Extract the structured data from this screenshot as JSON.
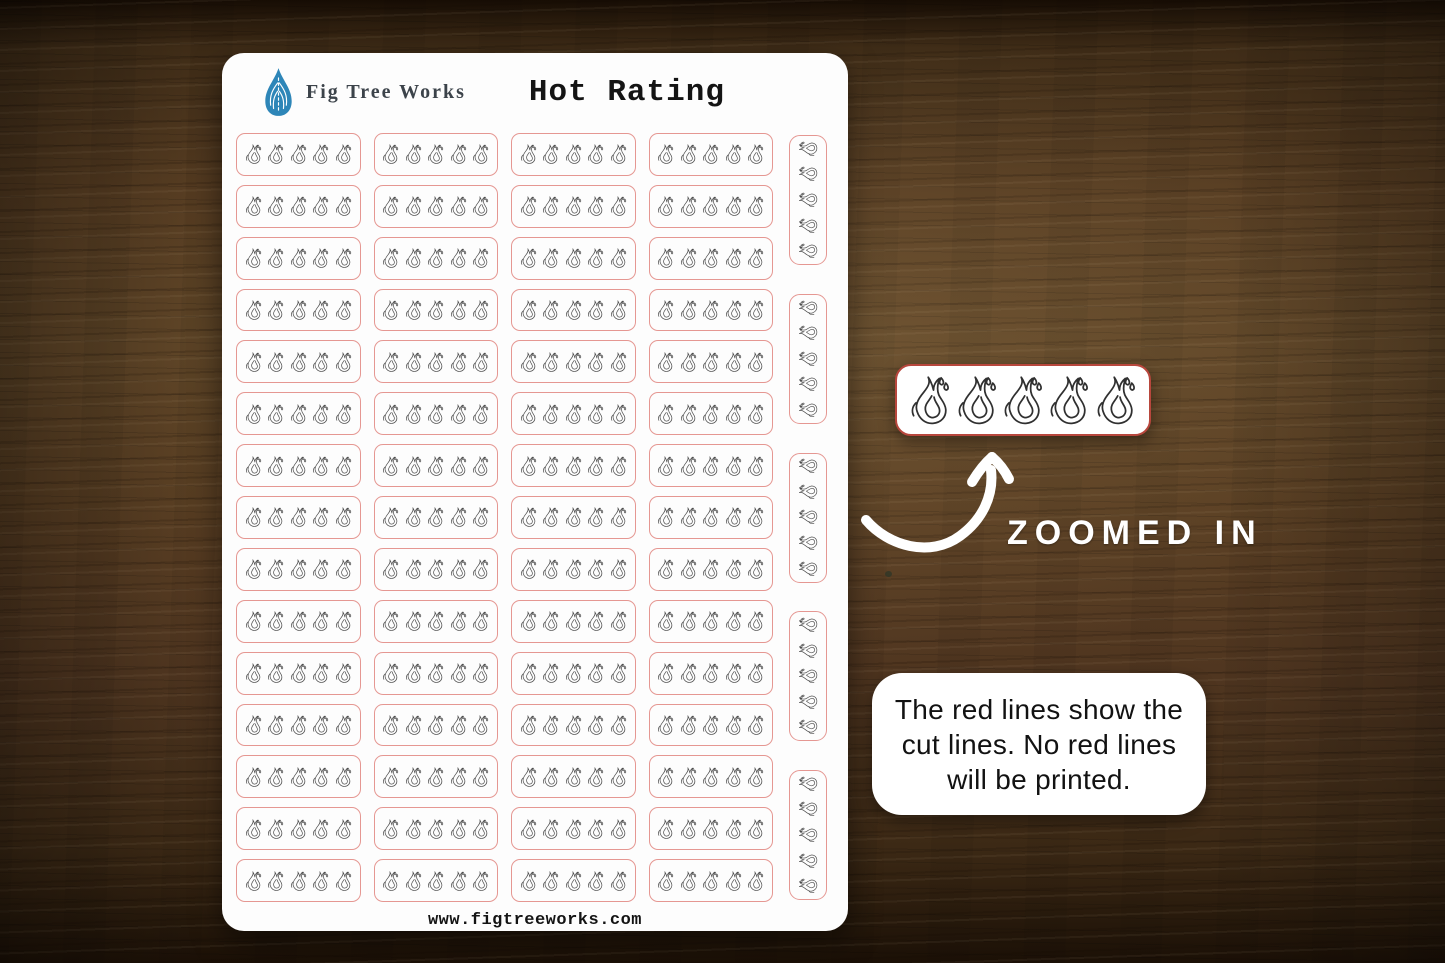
{
  "sheet": {
    "brand": "Fig Tree Works",
    "title": "Hot Rating",
    "website": "www.figtreeworks.com",
    "grid": {
      "columns": 4,
      "rows": 15,
      "flames_per_strip": 5,
      "side_strips": 5,
      "flames_per_side_strip": 5
    }
  },
  "callout": {
    "zoomed_label": "ZOOMED IN",
    "note_lines": [
      "The red lines show the",
      "cut lines. No red lines",
      "will be printed."
    ]
  },
  "icons": {
    "logo": "fig-drop-icon",
    "flame": "flame-icon",
    "arrow": "curved-arrow-icon"
  },
  "colors": {
    "cut_line": "#e59792",
    "zoom_border": "#b8473d",
    "flame_outline": "#4c4c4c",
    "logo_blue": "#2e86b8",
    "title_text": "#141414",
    "brand_text": "#3c434a",
    "note_text": "#121212",
    "sheet_bg": "#fdfdfd"
  }
}
